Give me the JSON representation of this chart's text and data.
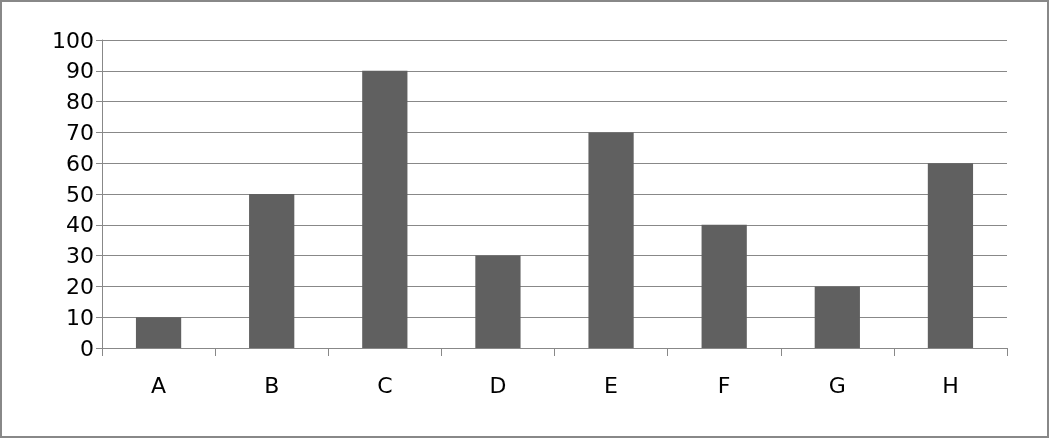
{
  "chart_data": {
    "type": "bar",
    "categories": [
      "A",
      "B",
      "C",
      "D",
      "E",
      "F",
      "G",
      "H"
    ],
    "values": [
      10,
      50,
      90,
      30,
      70,
      40,
      20,
      60
    ],
    "color": "#606060",
    "ylim": [
      0,
      100
    ],
    "yticks": [
      0,
      10,
      20,
      30,
      40,
      50,
      60,
      70,
      80,
      90,
      100
    ],
    "grid": "y"
  }
}
